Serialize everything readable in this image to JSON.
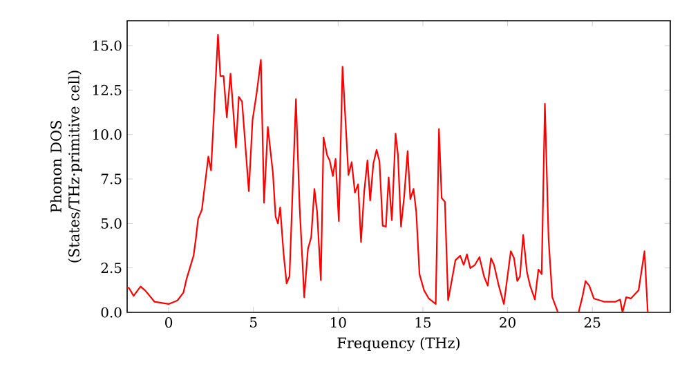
{
  "chart_data": {
    "type": "line",
    "xlabel": "Frequency (THz)",
    "ylabel": "Phonon DOS (States/THz·primitive cell)",
    "xlim": [
      -2.45,
      29.6
    ],
    "ylim": [
      0,
      16.4
    ],
    "xticks": [
      0,
      5,
      10,
      15,
      20,
      25
    ],
    "yticks": [
      {
        "value": 0,
        "label": "0.0"
      },
      {
        "value": 2.5,
        "label": "2.5"
      },
      {
        "value": 5,
        "label": "5.0"
      },
      {
        "value": 7.5,
        "label": "7.5"
      },
      {
        "value": 10,
        "label": "10.0"
      },
      {
        "value": 12.5,
        "label": "12.5"
      },
      {
        "value": 15,
        "label": "15.0"
      }
    ],
    "grid": false,
    "series": [
      {
        "color": "#ff0000",
        "x": [
          -2.45,
          -2.34,
          -2.07,
          -1.66,
          -1.39,
          -0.84,
          0,
          0.52,
          0.87,
          1.06,
          1.47,
          1.6,
          1.74,
          1.96,
          2.34,
          2.5,
          2.91,
          3.05,
          3.24,
          3.43,
          3.65,
          3.97,
          4.14,
          4.33,
          4.73,
          4.95,
          5.2,
          5.44,
          5.63,
          5.85,
          6.15,
          6.31,
          6.45,
          6.58,
          6.78,
          6.96,
          7.13,
          7.51,
          7.73,
          8.0,
          8.22,
          8.41,
          8.6,
          8.76,
          8.98,
          9.14,
          9.36,
          9.5,
          9.69,
          9.85,
          10.04,
          10.26,
          10.61,
          10.8,
          10.99,
          11.18,
          11.35,
          11.54,
          11.73,
          11.89,
          12.08,
          12.27,
          12.44,
          12.63,
          12.82,
          12.98,
          13.17,
          13.39,
          13.53,
          13.71,
          13.9,
          14.1,
          14.26,
          14.45,
          14.61,
          14.8,
          15.07,
          15.35,
          15.76,
          15.95,
          16.11,
          16.3,
          16.49,
          16.7,
          16.92,
          17.2,
          17.41,
          17.6,
          17.8,
          18.07,
          18.34,
          18.61,
          18.83,
          19.02,
          19.2,
          19.48,
          19.78,
          20.19,
          20.38,
          20.57,
          20.73,
          20.92,
          21.14,
          21.33,
          21.61,
          21.82,
          22.01,
          22.2,
          22.42,
          22.64,
          22.97,
          24.19,
          24.41,
          24.6,
          24.82,
          25.09,
          25.69,
          26.37,
          26.64,
          26.78,
          27.0,
          27.27,
          27.73,
          28.08,
          28.27,
          29.6
        ],
        "values": [
          1.4,
          1.37,
          0.93,
          1.45,
          1.24,
          0.6,
          0.47,
          0.67,
          1.11,
          1.89,
          3.19,
          4.1,
          5.26,
          5.77,
          8.76,
          7.98,
          15.62,
          13.29,
          13.29,
          10.96,
          13.42,
          9.27,
          12.12,
          11.86,
          6.81,
          10.82,
          12.38,
          14.2,
          6.16,
          10.43,
          7.85,
          5.38,
          5.0,
          5.9,
          3.32,
          1.63,
          2.02,
          11.99,
          5.9,
          0.85,
          3.57,
          4.22,
          6.94,
          5.65,
          1.81,
          9.84,
          8.81,
          8.55,
          7.67,
          8.62,
          5.13,
          13.81,
          7.72,
          8.45,
          6.74,
          7.2,
          3.96,
          6.81,
          8.55,
          6.29,
          8.37,
          9.14,
          8.49,
          4.87,
          4.82,
          7.59,
          5.18,
          10.05,
          8.88,
          4.82,
          6.55,
          9.07,
          6.37,
          6.94,
          5.65,
          2.15,
          1.24,
          0.78,
          0.47,
          10.31,
          6.43,
          6.22,
          0.67,
          1.76,
          2.93,
          3.19,
          2.67,
          3.26,
          2.49,
          2.67,
          3.11,
          2.02,
          1.5,
          3.05,
          2.67,
          1.5,
          0.47,
          3.44,
          3.05,
          1.76,
          2.02,
          4.35,
          2.28,
          1.5,
          0.72,
          2.41,
          2.15,
          11.73,
          4.1,
          0.85,
          0,
          0,
          0.85,
          1.76,
          1.5,
          0.78,
          0.6,
          0.6,
          0.72,
          0,
          0.85,
          0.78,
          1.24,
          3.44,
          0,
          0
        ]
      }
    ]
  }
}
